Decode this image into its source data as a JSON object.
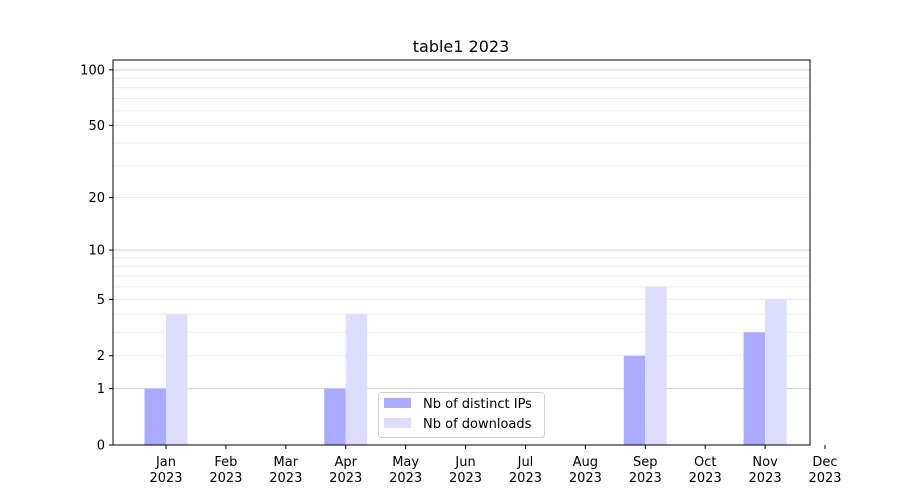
{
  "chart_data": {
    "type": "bar",
    "title": "table1 2023",
    "xlabel": "",
    "ylabel": "",
    "categories": [
      "Jan\n2023",
      "Feb\n2023",
      "Mar\n2023",
      "Apr\n2023",
      "May\n2023",
      "Jun\n2023",
      "Jul\n2023",
      "Aug\n2023",
      "Sep\n2023",
      "Oct\n2023",
      "Nov\n2023",
      "Dec\n2023"
    ],
    "series": [
      {
        "name": "Nb of distinct IPs",
        "color": "#aaaaff",
        "values": [
          1,
          0,
          0,
          1,
          0,
          0,
          0,
          0,
          2,
          0,
          3,
          0
        ]
      },
      {
        "name": "Nb of downloads",
        "color": "#ddddff",
        "values": [
          4,
          0,
          0,
          4,
          0,
          0,
          0,
          0,
          6,
          0,
          5,
          0
        ]
      }
    ],
    "yscale": "log(1+y)",
    "ylim": [
      0,
      113
    ],
    "yticks": [
      0,
      1,
      2,
      5,
      10,
      20,
      50,
      100
    ],
    "grid": true,
    "legend": "lower-center"
  }
}
